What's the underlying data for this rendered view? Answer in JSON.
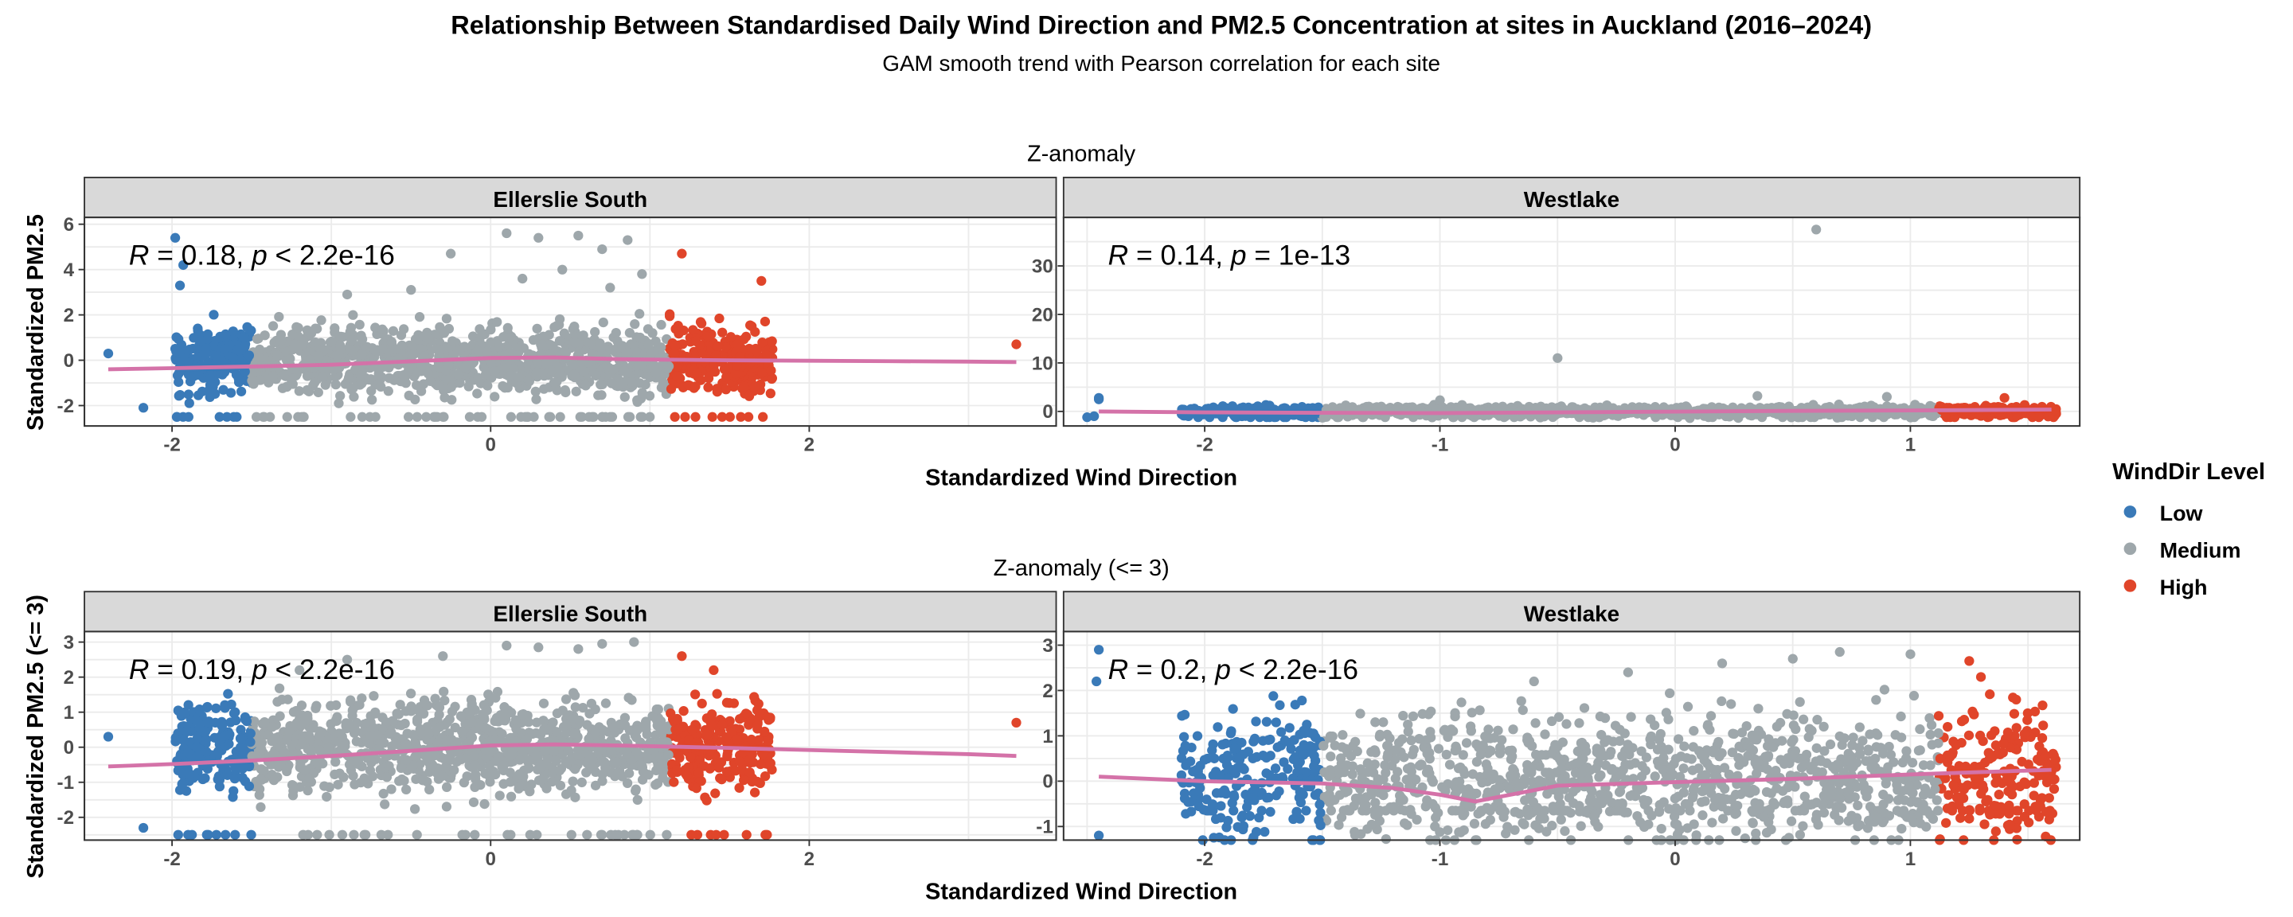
{
  "figure": {
    "title": "Relationship Between Standardised Daily Wind Direction and PM2.5 Concentration at sites in Auckland (2016–2024)",
    "subtitle": "GAM smooth trend with Pearson correlation for each site"
  },
  "legend": {
    "title": "WindDir Level",
    "placement": "right",
    "items": [
      {
        "label": "Low",
        "color": "#3a7ab8"
      },
      {
        "label": "Medium",
        "color": "#9ea7ab"
      },
      {
        "label": "High",
        "color": "#e0452a"
      }
    ]
  },
  "colors": {
    "smooth": "#d472a8",
    "strip_bg": "#d9d9d9",
    "grid": "#ebebeb",
    "panel_border": "#333333"
  },
  "chart_data": [
    {
      "type": "scatter",
      "row_title": "Z-anomaly",
      "ylabel": "Standardized PM2.5",
      "xlabel": "Standardized Wind Direction",
      "grid": true,
      "panels": [
        {
          "site": "Ellerslie South",
          "xlim": [
            -2.55,
            3.55
          ],
          "ylim": [
            -2.9,
            6.3
          ],
          "xticks": [
            -2,
            0,
            2
          ],
          "yticks": [
            -2,
            0,
            2,
            4,
            6
          ],
          "correlation": {
            "r_text": "R = 0.18, ",
            "p_symbol": "p",
            "p_text": " < 2.2e-16"
          },
          "cluster": {
            "x_range": [
              -1.98,
              1.77
            ],
            "center": 0.0,
            "spread": 0.75,
            "tails": [
              [
                -2.18,
                -2.1
              ],
              [
                3.3,
                0.7
              ],
              [
                -2.4,
                0.3
              ]
            ],
            "floor": -2.5
          },
          "outliers": [
            [
              -1.98,
              5.4
            ],
            [
              -1.93,
              4.2
            ],
            [
              -1.95,
              3.3
            ],
            [
              -0.25,
              4.7
            ],
            [
              0.1,
              5.6
            ],
            [
              0.3,
              5.4
            ],
            [
              0.55,
              5.5
            ],
            [
              0.7,
              4.9
            ],
            [
              0.86,
              5.3
            ],
            [
              0.95,
              3.8
            ],
            [
              0.45,
              4.0
            ],
            [
              -0.5,
              3.1
            ],
            [
              1.2,
              4.7
            ],
            [
              1.7,
              3.5
            ],
            [
              -0.9,
              2.9
            ],
            [
              0.2,
              3.6
            ],
            [
              0.75,
              3.2
            ]
          ],
          "smooth": {
            "x": [
              -2.4,
              -2.0,
              -1.5,
              -1.0,
              -0.5,
              0.0,
              0.4,
              0.8,
              1.1,
              1.5,
              2.0,
              2.5,
              3.0,
              3.3
            ],
            "y": [
              -0.4,
              -0.35,
              -0.28,
              -0.2,
              -0.05,
              0.1,
              0.12,
              0.05,
              0.02,
              0.0,
              -0.02,
              -0.04,
              -0.06,
              -0.08
            ]
          }
        },
        {
          "site": "Westlake",
          "xlim": [
            -2.6,
            1.72
          ],
          "ylim": [
            -3.0,
            40.0
          ],
          "xticks": [
            -2,
            -1,
            0,
            1
          ],
          "yticks": [
            0,
            10,
            20,
            30
          ],
          "correlation": {
            "r_text": "R = 0.14, ",
            "p_symbol": "p",
            "p_text": " = 1e-13"
          },
          "cluster": {
            "x_range": [
              -2.1,
              1.62
            ],
            "center": 0.0,
            "spread": 0.5,
            "tails": [
              [
                -2.45,
                2.5
              ],
              [
                -2.47,
                -1.0
              ],
              [
                -2.5,
                -1.2
              ]
            ],
            "floor": -1.2
          },
          "outliers": [
            [
              0.6,
              37.5
            ],
            [
              -0.5,
              11.0
            ],
            [
              0.35,
              3.2
            ],
            [
              0.9,
              3.0
            ],
            [
              -1.0,
              2.3
            ],
            [
              1.4,
              2.8
            ],
            [
              -2.45,
              2.8
            ]
          ],
          "smooth": {
            "x": [
              -2.45,
              -2.0,
              -1.5,
              -1.0,
              -0.5,
              0.0,
              0.5,
              1.0,
              1.3,
              1.6
            ],
            "y": [
              0.0,
              -0.2,
              -0.3,
              -0.35,
              -0.2,
              -0.05,
              0.1,
              0.2,
              0.3,
              0.4
            ]
          }
        }
      ]
    },
    {
      "type": "scatter",
      "row_title": "Z-anomaly (<= 3)",
      "ylabel": "Standardized PM2.5 (<= 3)",
      "xlabel": "Standardized Wind Direction",
      "grid": true,
      "panels": [
        {
          "site": "Ellerslie South",
          "xlim": [
            -2.55,
            3.55
          ],
          "ylim": [
            -2.65,
            3.3
          ],
          "xticks": [
            -2,
            0,
            2
          ],
          "yticks": [
            -2,
            -1,
            0,
            1,
            2,
            3
          ],
          "correlation": {
            "r_text": "R = 0.19, ",
            "p_symbol": "p",
            "p_text": " < 2.2e-16"
          },
          "cluster": {
            "x_range": [
              -1.98,
              1.77
            ],
            "center": 0.0,
            "spread": 0.62,
            "tails": [
              [
                -2.18,
                -2.3
              ],
              [
                3.3,
                0.7
              ],
              [
                -2.4,
                0.3
              ]
            ],
            "floor": -2.5
          },
          "outliers": [
            [
              -0.3,
              2.6
            ],
            [
              0.1,
              2.9
            ],
            [
              0.3,
              2.85
            ],
            [
              0.55,
              2.8
            ],
            [
              0.9,
              3.0
            ],
            [
              -0.9,
              2.5
            ],
            [
              1.2,
              2.6
            ],
            [
              1.4,
              2.2
            ],
            [
              -1.2,
              2.2
            ],
            [
              0.7,
              2.95
            ]
          ],
          "smooth": {
            "x": [
              -2.4,
              -2.0,
              -1.5,
              -1.0,
              -0.5,
              0.0,
              0.4,
              0.8,
              1.1,
              1.5,
              2.0,
              2.5,
              3.0,
              3.3
            ],
            "y": [
              -0.55,
              -0.48,
              -0.38,
              -0.25,
              -0.1,
              0.05,
              0.08,
              0.05,
              0.02,
              -0.02,
              -0.08,
              -0.14,
              -0.2,
              -0.25
            ]
          }
        },
        {
          "site": "Westlake",
          "xlim": [
            -2.6,
            1.72
          ],
          "ylim": [
            -1.3,
            3.3
          ],
          "xticks": [
            -2,
            -1,
            0,
            1
          ],
          "yticks": [
            -1,
            0,
            1,
            2,
            3
          ],
          "correlation": {
            "r_text": "R = 0.2, ",
            "p_symbol": "p",
            "p_text": " < 2.2e-16"
          },
          "cluster": {
            "x_range": [
              -2.1,
              1.62
            ],
            "center": 0.1,
            "spread": 0.7,
            "tails": [
              [
                -2.45,
                2.9
              ],
              [
                -2.46,
                2.2
              ],
              [
                -2.45,
                -1.2
              ]
            ],
            "floor": -0.65
          },
          "outliers": [
            [
              0.7,
              2.85
            ],
            [
              0.5,
              2.7
            ],
            [
              1.0,
              2.8
            ],
            [
              -0.2,
              2.4
            ],
            [
              0.2,
              2.6
            ],
            [
              -0.6,
              2.2
            ],
            [
              1.25,
              2.65
            ],
            [
              1.3,
              2.3
            ],
            [
              1.45,
              1.8
            ]
          ],
          "smooth": {
            "x": [
              -2.45,
              -2.0,
              -1.5,
              -1.2,
              -1.0,
              -0.85,
              -0.7,
              -0.5,
              0.0,
              0.5,
              1.0,
              1.3,
              1.6
            ],
            "y": [
              0.1,
              0.0,
              -0.05,
              -0.15,
              -0.3,
              -0.45,
              -0.3,
              -0.1,
              -0.02,
              0.05,
              0.15,
              0.2,
              0.25
            ]
          }
        }
      ]
    }
  ]
}
